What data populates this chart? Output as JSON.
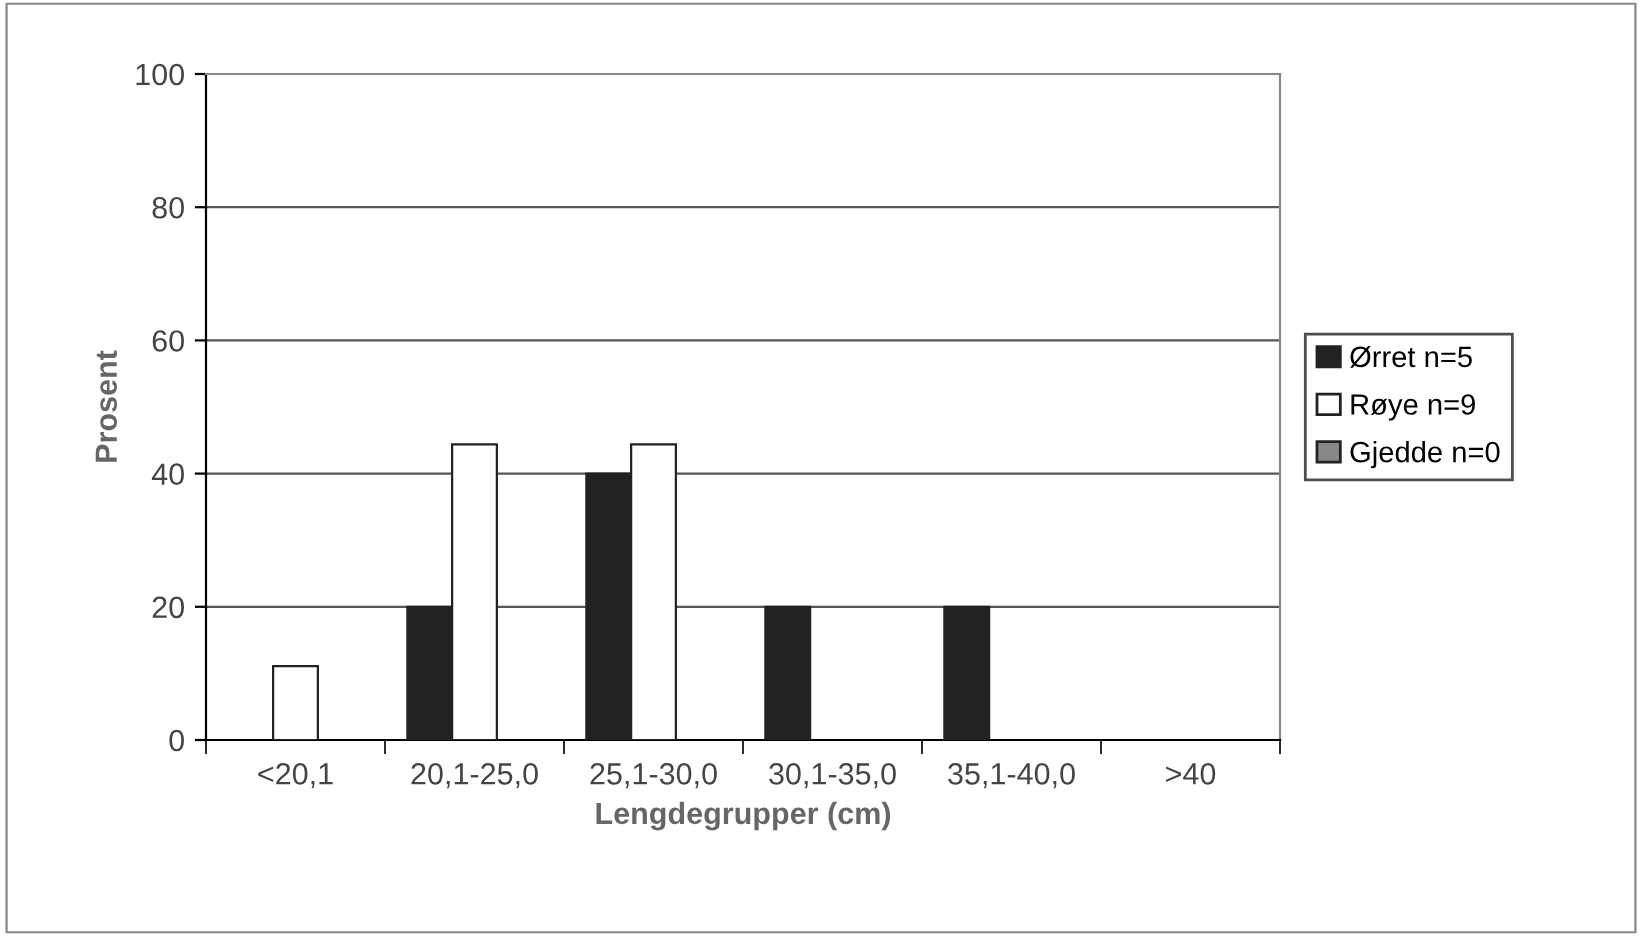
{
  "chart_data": {
    "type": "bar",
    "xlabel": "Lengdegrupper (cm)",
    "ylabel": "Prosent",
    "categories": [
      "<20,1",
      "20,1-25,0",
      "25,1-30,0",
      "30,1-35,0",
      "35,1-40,0",
      ">40"
    ],
    "series": [
      {
        "name": "Ørret n=5",
        "color": "#222222",
        "values": [
          0,
          20,
          40,
          20,
          20,
          0
        ]
      },
      {
        "name": "Røye n=9",
        "color": "#ffffff",
        "values": [
          11.1,
          44.4,
          44.4,
          0,
          0,
          0
        ]
      },
      {
        "name": "Gjedde n=0",
        "color": "#888888",
        "values": [
          0,
          0,
          0,
          0,
          0,
          0
        ]
      }
    ],
    "ylim": [
      0,
      100
    ],
    "yticks": [
      0,
      20,
      40,
      60,
      80,
      100
    ],
    "grid": "y",
    "legend": "right"
  }
}
